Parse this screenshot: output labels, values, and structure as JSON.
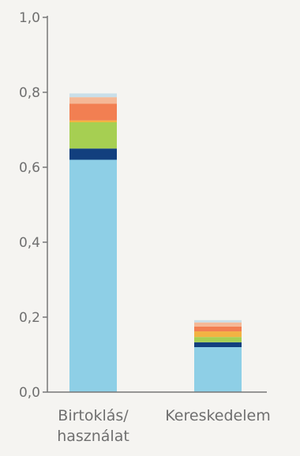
{
  "chart_data": {
    "type": "bar",
    "stacked": true,
    "categories": [
      [
        "Birtoklás/",
        "használat"
      ],
      [
        "Kereskedelem"
      ]
    ],
    "ylim": [
      0,
      1.0
    ],
    "yticks": [
      "0,0",
      "0,2",
      "0,4",
      "0,6",
      "0,8",
      "1,0"
    ],
    "ytick_values": [
      0,
      0.2,
      0.4,
      0.6,
      0.8,
      1.0
    ],
    "grid": false,
    "series": [
      {
        "color": "#8ecfe6",
        "values": [
          0.62,
          0.12
        ]
      },
      {
        "color": "#123f7e",
        "values": [
          0.03,
          0.013
        ]
      },
      {
        "color": "#a6cf52",
        "values": [
          0.07,
          0.014
        ]
      },
      {
        "color": "#f2b343",
        "values": [
          0.005,
          0.015
        ]
      },
      {
        "color": "#f27f52",
        "values": [
          0.045,
          0.013
        ]
      },
      {
        "color": "#f5b896",
        "values": [
          0.017,
          0.011
        ]
      },
      {
        "color": "#c9dfe9",
        "values": [
          0.01,
          0.006
        ]
      }
    ]
  },
  "colors": {
    "axis": "#777777",
    "text": "#6f6f6f",
    "background": "#f5f4f1"
  }
}
